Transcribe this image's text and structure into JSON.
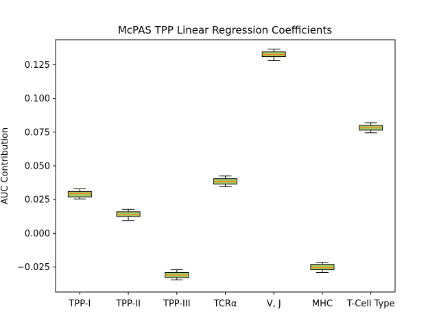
{
  "chart_data": {
    "type": "box",
    "title": "McPAS TPP Linear Regression Coefficients",
    "xlabel": "",
    "ylabel": "AUC Contribution",
    "ylim": [
      -0.0435,
      0.1435
    ],
    "yticks": [
      -0.025,
      0.0,
      0.025,
      0.05,
      0.075,
      0.1,
      0.125
    ],
    "ytick_labels": [
      "−0.025",
      "0.000",
      "0.025",
      "0.050",
      "0.075",
      "0.100",
      "0.125"
    ],
    "grid": false,
    "categories": [
      "TPP-I",
      "TPP-II",
      "TPP-III",
      "TCRα",
      "V, J",
      "MHC",
      "T-Cell Type"
    ],
    "boxes": [
      {
        "whislo": 0.0255,
        "q1": 0.027,
        "med": 0.0295,
        "q3": 0.031,
        "whishi": 0.033
      },
      {
        "whislo": 0.0095,
        "q1": 0.0125,
        "med": 0.014,
        "q3": 0.016,
        "whishi": 0.0178
      },
      {
        "whislo": -0.0345,
        "q1": -0.0328,
        "med": -0.031,
        "q3": -0.029,
        "whishi": -0.027
      },
      {
        "whislo": 0.0345,
        "q1": 0.0365,
        "med": 0.0385,
        "q3": 0.0405,
        "whishi": 0.0425
      },
      {
        "whislo": 0.128,
        "q1": 0.131,
        "med": 0.1325,
        "q3": 0.1345,
        "whishi": 0.1365
      },
      {
        "whislo": -0.029,
        "q1": -0.027,
        "med": -0.0255,
        "q3": -0.023,
        "whishi": -0.0215
      },
      {
        "whislo": 0.0745,
        "q1": 0.0765,
        "med": 0.0785,
        "q3": 0.08,
        "whishi": 0.082
      }
    ],
    "colors": {
      "box_fill": "#a6c96a",
      "median_line": "#ff7f0e",
      "box_edge": "#000000"
    }
  }
}
